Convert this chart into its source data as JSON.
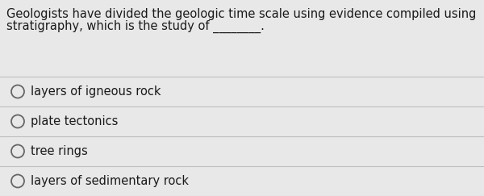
{
  "question_line1": "Geologists have divided the geologic time scale using evidence compiled using",
  "question_line2": "stratigraphy, which is the study of ________.",
  "options": [
    "layers of igneous rock",
    "plate tectonics",
    "tree rings",
    "layers of sedimentary rock"
  ],
  "bg_color": "#e8e8e8",
  "text_color": "#1a1a1a",
  "sep_color": "#c0c0c0",
  "question_fontsize": 10.5,
  "option_fontsize": 10.5,
  "figsize": [
    6.0,
    2.43
  ],
  "dpi": 100
}
